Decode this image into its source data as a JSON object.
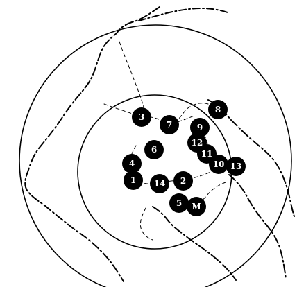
{
  "map": {
    "markers": [
      {
        "id": "3",
        "label": "3"
      },
      {
        "id": "7",
        "label": "7"
      },
      {
        "id": "8",
        "label": "8"
      },
      {
        "id": "9",
        "label": "9"
      },
      {
        "id": "6",
        "label": "6"
      },
      {
        "id": "12",
        "label": "12"
      },
      {
        "id": "11",
        "label": "11"
      },
      {
        "id": "4",
        "label": "4"
      },
      {
        "id": "10",
        "label": "10"
      },
      {
        "id": "13",
        "label": "13"
      },
      {
        "id": "1",
        "label": "1"
      },
      {
        "id": "14",
        "label": "14"
      },
      {
        "id": "2",
        "label": "2"
      },
      {
        "id": "5",
        "label": "5"
      },
      {
        "id": "M",
        "label": "M"
      }
    ],
    "colors": {
      "background": "#ffffff",
      "ink": "#000000",
      "marker_fill": "#000000",
      "marker_text": "#ffffff"
    }
  }
}
